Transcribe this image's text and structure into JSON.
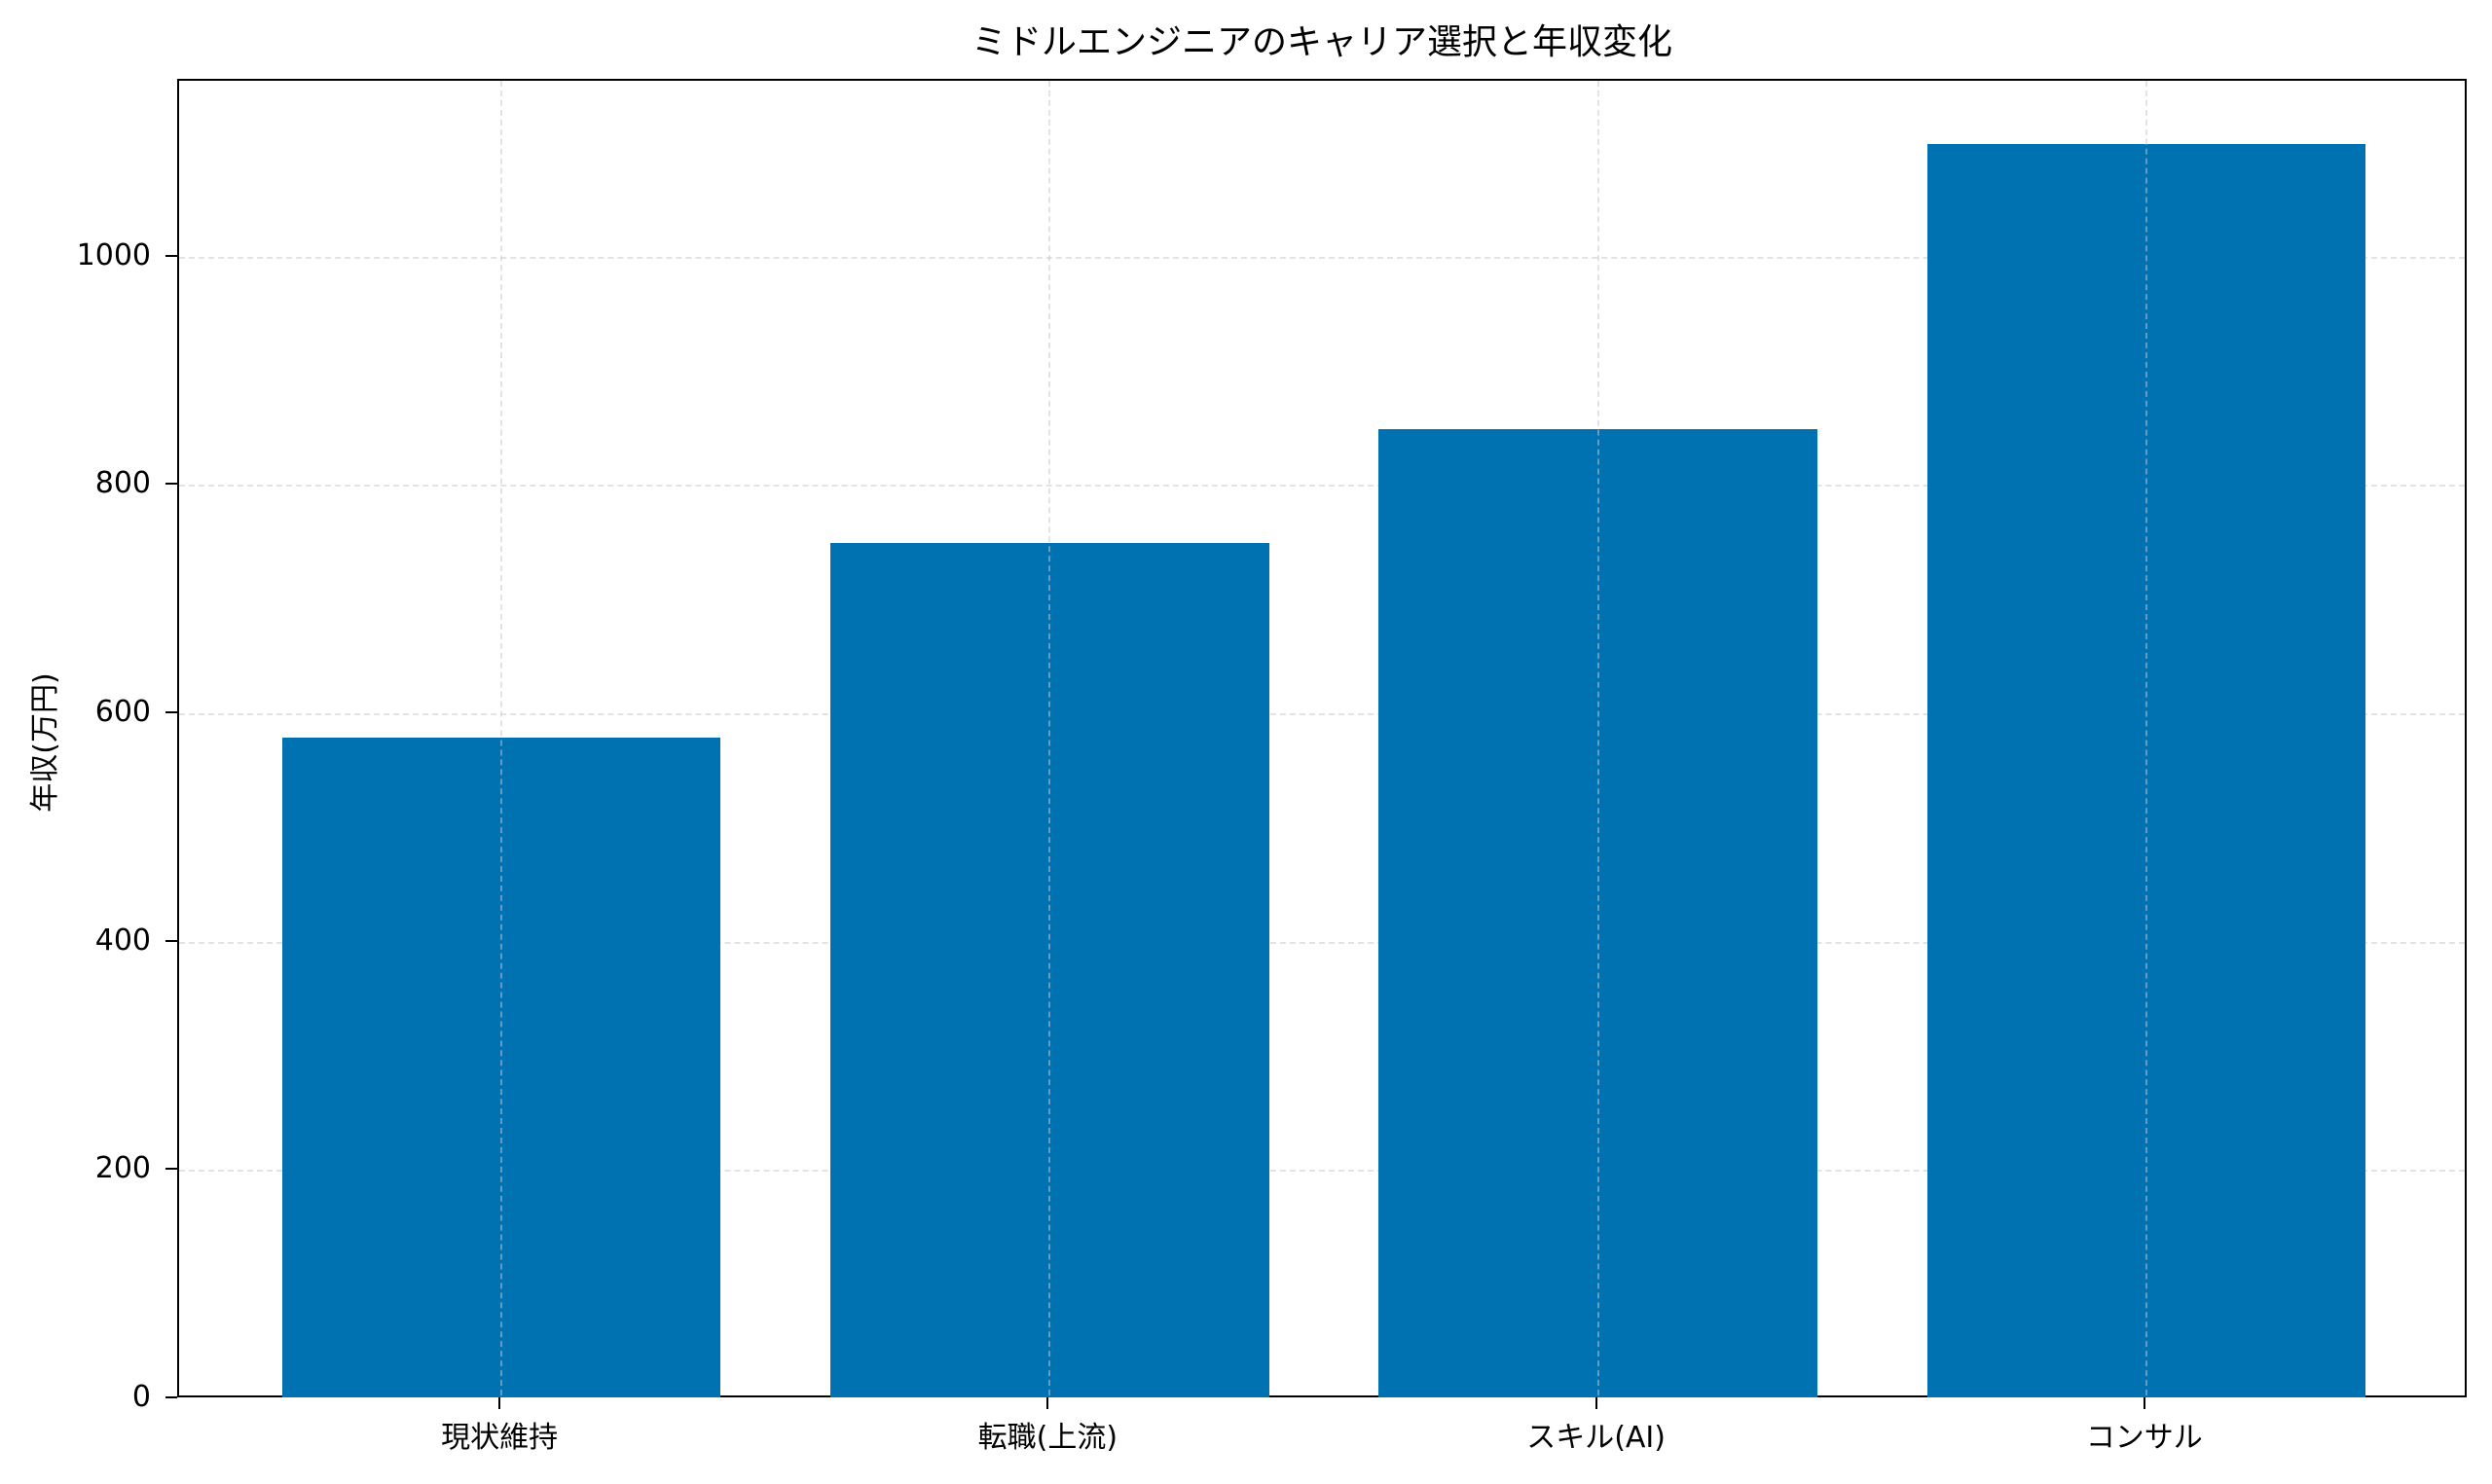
{
  "chart_data": {
    "type": "bar",
    "title": "ミドルエンジニアのキャリア選択と年収変化",
    "xlabel": "",
    "ylabel": "年収(万円)",
    "categories": [
      "現状維持",
      "転職(上流)",
      "スキル(AI)",
      "コンサル"
    ],
    "values": [
      580,
      750,
      850,
      1100
    ],
    "ylim": [
      0,
      1155
    ],
    "yticks": [
      0,
      200,
      400,
      600,
      800,
      1000
    ],
    "grid": true,
    "grid_style": "dashed",
    "legend": null,
    "bar_color": "#0072B2"
  },
  "yticks_labels": [
    "0",
    "200",
    "400",
    "600",
    "800",
    "1000"
  ]
}
